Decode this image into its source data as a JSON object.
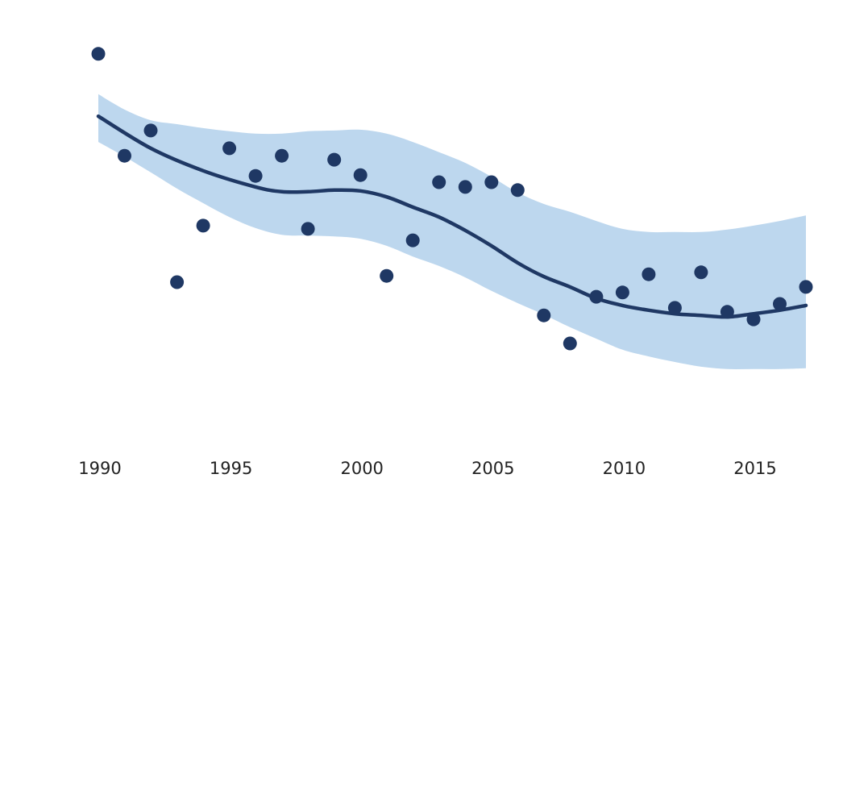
{
  "chart_data": {
    "type": "scatter",
    "title": "",
    "xlabel": "",
    "ylabel": "",
    "xlim": [
      1990,
      2017
    ],
    "ylim": [
      0,
      100
    ],
    "grid": false,
    "legend": "none",
    "x_ticks": [
      "1990",
      "1995",
      "2000",
      "2005",
      "2010",
      "2015"
    ],
    "x_tick_values": [
      1990,
      1995,
      2000,
      2005,
      2010,
      2015
    ],
    "series": [
      {
        "kind": "points",
        "color": "#1f3864",
        "points": [
          {
            "x": 1990,
            "y": 92.9
          },
          {
            "x": 1991,
            "y": 67.1
          },
          {
            "x": 1992,
            "y": 73.5
          },
          {
            "x": 1993,
            "y": 35.1
          },
          {
            "x": 1994,
            "y": 49.4
          },
          {
            "x": 1995,
            "y": 69.0
          },
          {
            "x": 1996,
            "y": 62.0
          },
          {
            "x": 1997,
            "y": 67.1
          },
          {
            "x": 1998,
            "y": 48.6
          },
          {
            "x": 1999,
            "y": 66.1
          },
          {
            "x": 2000,
            "y": 62.2
          },
          {
            "x": 2001,
            "y": 36.7
          },
          {
            "x": 2002,
            "y": 45.7
          },
          {
            "x": 2003,
            "y": 60.4
          },
          {
            "x": 2004,
            "y": 59.2
          },
          {
            "x": 2005,
            "y": 60.4
          },
          {
            "x": 2006,
            "y": 58.4
          },
          {
            "x": 2007,
            "y": 26.7
          },
          {
            "x": 2008,
            "y": 19.6
          },
          {
            "x": 2009,
            "y": 31.4
          },
          {
            "x": 2010,
            "y": 32.5
          },
          {
            "x": 2011,
            "y": 37.1
          },
          {
            "x": 2012,
            "y": 28.6
          },
          {
            "x": 2013,
            "y": 37.6
          },
          {
            "x": 2014,
            "y": 27.6
          },
          {
            "x": 2015,
            "y": 25.7
          },
          {
            "x": 2016,
            "y": 29.6
          },
          {
            "x": 2017,
            "y": 33.9
          }
        ]
      },
      {
        "kind": "line",
        "color": "#1f3864",
        "points": [
          {
            "x": 1990,
            "y": 77.1
          },
          {
            "x": 1992,
            "y": 69.0
          },
          {
            "x": 1994,
            "y": 63.3
          },
          {
            "x": 1996,
            "y": 59.2
          },
          {
            "x": 1997,
            "y": 58.0
          },
          {
            "x": 1998,
            "y": 58.0
          },
          {
            "x": 1999,
            "y": 58.4
          },
          {
            "x": 2000,
            "y": 58.2
          },
          {
            "x": 2001,
            "y": 56.7
          },
          {
            "x": 2002,
            "y": 54.1
          },
          {
            "x": 2003,
            "y": 51.6
          },
          {
            "x": 2004,
            "y": 48.2
          },
          {
            "x": 2005,
            "y": 44.3
          },
          {
            "x": 2006,
            "y": 40.0
          },
          {
            "x": 2007,
            "y": 36.5
          },
          {
            "x": 2008,
            "y": 33.9
          },
          {
            "x": 2009,
            "y": 31.0
          },
          {
            "x": 2010,
            "y": 29.2
          },
          {
            "x": 2011,
            "y": 28.0
          },
          {
            "x": 2012,
            "y": 27.1
          },
          {
            "x": 2013,
            "y": 26.7
          },
          {
            "x": 2014,
            "y": 26.3
          },
          {
            "x": 2015,
            "y": 27.1
          },
          {
            "x": 2016,
            "y": 28.0
          },
          {
            "x": 2017,
            "y": 29.2
          }
        ]
      },
      {
        "kind": "band",
        "color": "#bdd7ee",
        "x": [
          1990,
          1991,
          1992,
          1993,
          1994,
          1995,
          1996,
          1997,
          1998,
          1999,
          2000,
          2001,
          2002,
          2003,
          2004,
          2005,
          2006,
          2007,
          2008,
          2009,
          2010,
          2011,
          2012,
          2013,
          2014,
          2015,
          2016,
          2017
        ],
        "upper": [
          82.7,
          78.8,
          76.1,
          75.1,
          74.1,
          73.3,
          72.7,
          72.7,
          73.3,
          73.5,
          73.7,
          72.7,
          70.6,
          68.0,
          65.3,
          61.8,
          57.8,
          54.9,
          52.9,
          50.6,
          48.6,
          47.8,
          47.8,
          47.8,
          48.4,
          49.4,
          50.6,
          52.0
        ],
        "lower": [
          70.6,
          66.9,
          62.9,
          58.8,
          55.1,
          51.6,
          48.8,
          47.1,
          46.9,
          46.7,
          46.1,
          44.3,
          41.6,
          39.2,
          36.3,
          32.9,
          29.8,
          26.9,
          23.7,
          20.8,
          18.0,
          16.3,
          14.9,
          13.7,
          13.1,
          13.1,
          13.1,
          13.3
        ]
      }
    ]
  }
}
